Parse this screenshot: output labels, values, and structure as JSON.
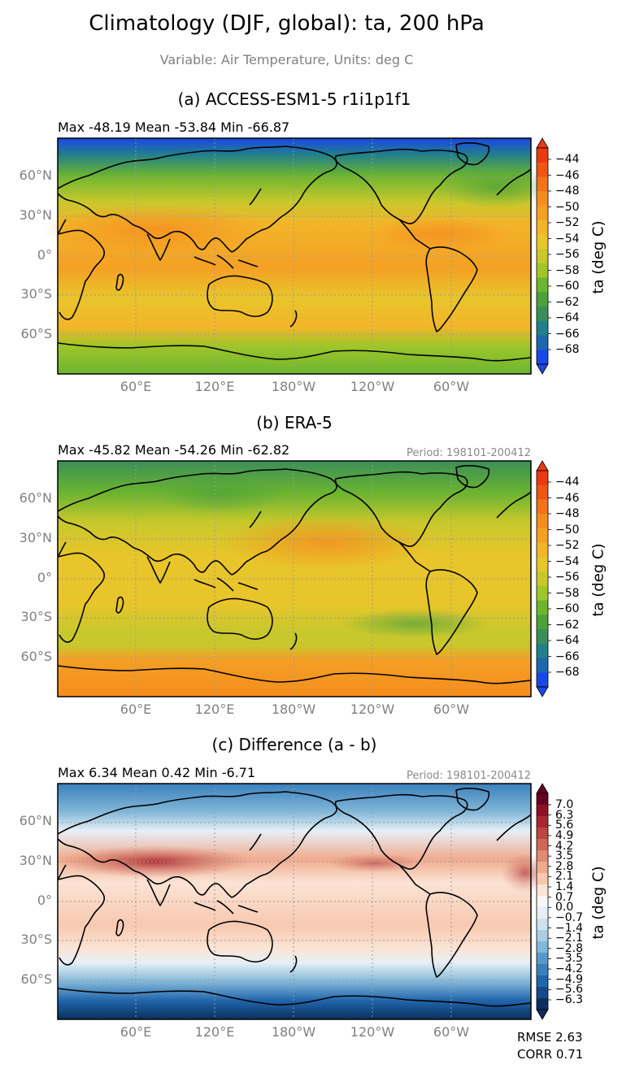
{
  "figure": {
    "title": "Climatology (DJF, global): ta, 200 hPa",
    "subtitle": "Variable: Air Temperature, Units: deg C"
  },
  "panels": [
    {
      "title": "(a) ACCESS-ESM1-5 r1i1p1f1",
      "stats": "Max -48.19 Mean -53.84 Min -66.87",
      "period": "",
      "colorbar_label": "ta (deg C)",
      "colorbar_ticks": [
        "−44",
        "−46",
        "−48",
        "−50",
        "−52",
        "−54",
        "−56",
        "−58",
        "−60",
        "−62",
        "−64",
        "−66",
        "−68"
      ],
      "palette": [
        "#1a47e6",
        "#1b68b0",
        "#22808a",
        "#3a8f58",
        "#4ca13a",
        "#6db52f",
        "#9fc629",
        "#c8c82c",
        "#e8c52a",
        "#f2b52a",
        "#f4a024",
        "#f58d1e",
        "#f27319",
        "#ee5614",
        "#e93a10"
      ]
    },
    {
      "title": "(b) ERA-5",
      "stats": "Max -45.82 Mean -54.26 Min -62.82",
      "period": "Period: 198101-200412",
      "colorbar_label": "ta (deg C)",
      "colorbar_ticks": [
        "−44",
        "−46",
        "−48",
        "−50",
        "−52",
        "−54",
        "−56",
        "−58",
        "−60",
        "−62",
        "−64",
        "−66",
        "−68"
      ],
      "palette": [
        "#1a47e6",
        "#1b68b0",
        "#22808a",
        "#3a8f58",
        "#4ca13a",
        "#6db52f",
        "#9fc629",
        "#c8c82c",
        "#e8c52a",
        "#f2b52a",
        "#f4a024",
        "#f58d1e",
        "#f27319",
        "#ee5614",
        "#e93a10"
      ]
    },
    {
      "title": "(c) Difference (a - b)",
      "stats": "Max 6.34 Mean 0.42 Min -6.71",
      "period": "Period: 198101-200412",
      "colorbar_label": "ta (deg C)",
      "colorbar_ticks": [
        "7.0",
        "6.3",
        "5.6",
        "4.9",
        "4.2",
        "3.5",
        "2.8",
        "2.1",
        "1.4",
        "0.7",
        "0.0",
        "−0.7",
        "−1.4",
        "−2.1",
        "−2.8",
        "−3.5",
        "−4.2",
        "−4.9",
        "−5.6",
        "−6.3"
      ],
      "palette": [
        "#0b2f5e",
        "#154a8a",
        "#2166ac",
        "#3a80bb",
        "#5799c9",
        "#82b7d8",
        "#a9cfe5",
        "#cde2ef",
        "#e6eff6",
        "#f7f7f7",
        "#fbe3d5",
        "#f7c9b0",
        "#f0ab8e",
        "#e08a70",
        "#cf6756",
        "#bd4640",
        "#a8272f",
        "#8e1027",
        "#67001f"
      ]
    }
  ],
  "lat_labels": [
    "60°N",
    "30°N",
    "0°",
    "30°S",
    "60°S"
  ],
  "lon_labels": [
    "60°E",
    "120°E",
    "180°W",
    "120°W",
    "60°W"
  ],
  "metrics": {
    "rmse": "RMSE 2.63",
    "corr": "CORR 0.71"
  }
}
